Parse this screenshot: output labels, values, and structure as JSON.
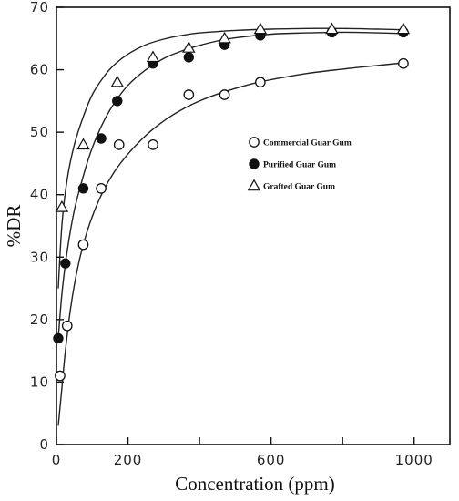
{
  "chart_data": {
    "type": "scatter",
    "title": "",
    "xlabel": "Concentration (ppm)",
    "ylabel": "%DR",
    "xlim": [
      0,
      1100
    ],
    "ylim": [
      0,
      70
    ],
    "x_ticks": [
      0,
      200,
      600,
      1000
    ],
    "x_tick_labels": [
      "0",
      "200",
      "600",
      "1000"
    ],
    "x_minor_ticks": [
      400,
      800
    ],
    "y_ticks": [
      0,
      10,
      20,
      30,
      40,
      50,
      60,
      70
    ],
    "y_tick_labels": [
      "0",
      "10",
      "20",
      "30",
      "40",
      "50",
      "60",
      "70"
    ],
    "grid": false,
    "legend_position": "right-middle",
    "series": [
      {
        "name": "Commercial Guar Gum",
        "marker": "open-circle",
        "x": [
          10,
          30,
          75,
          125,
          175,
          270,
          370,
          470,
          570,
          970
        ],
        "y": [
          11,
          19,
          32,
          41,
          48,
          48,
          56,
          56,
          58,
          61
        ],
        "fit_x": [
          5,
          15,
          25,
          40,
          60,
          80,
          100,
          130,
          160,
          200,
          250,
          300,
          350,
          400,
          450,
          500,
          550,
          600,
          700,
          800,
          900,
          970
        ],
        "fit_y": [
          3,
          9,
          15,
          22,
          28.5,
          33,
          36.5,
          40.5,
          43.5,
          46.5,
          49.5,
          51.8,
          53.6,
          55,
          56.1,
          57,
          57.8,
          58.4,
          59.4,
          60.1,
          60.7,
          61.1
        ]
      },
      {
        "name": "Purified Guar Gum",
        "marker": "filled-circle",
        "x": [
          5,
          25,
          75,
          125,
          170,
          270,
          370,
          470,
          570,
          770,
          970
        ],
        "y": [
          17,
          29,
          41,
          49,
          55,
          61,
          62,
          64,
          65.5,
          66,
          66
        ],
        "fit_x": [
          5,
          15,
          30,
          50,
          75,
          100,
          130,
          160,
          200,
          250,
          300,
          350,
          400,
          450,
          500,
          600,
          700,
          800,
          900,
          970
        ],
        "fit_y": [
          17,
          24,
          31,
          37.5,
          43,
          47.5,
          51.5,
          54.5,
          57.5,
          60,
          61.8,
          63,
          63.9,
          64.6,
          65.1,
          65.7,
          65.9,
          66,
          65.9,
          65.8
        ]
      },
      {
        "name": "Grafted Guar Gum",
        "marker": "open-triangle",
        "x": [
          15,
          75,
          170,
          270,
          370,
          470,
          570,
          770,
          970
        ],
        "y": [
          38,
          48,
          58,
          62,
          63.5,
          65,
          66.5,
          66.5,
          66.5
        ],
        "fit_x": [
          5,
          15,
          30,
          50,
          75,
          100,
          130,
          160,
          200,
          250,
          300,
          350,
          400,
          450,
          500,
          600,
          700,
          800,
          900,
          970
        ],
        "fit_y": [
          25,
          35,
          42.5,
          48,
          52.5,
          56,
          58.7,
          60.7,
          62.5,
          64,
          64.9,
          65.5,
          65.9,
          66.1,
          66.3,
          66.5,
          66.6,
          66.6,
          66.5,
          66.4
        ]
      }
    ]
  }
}
